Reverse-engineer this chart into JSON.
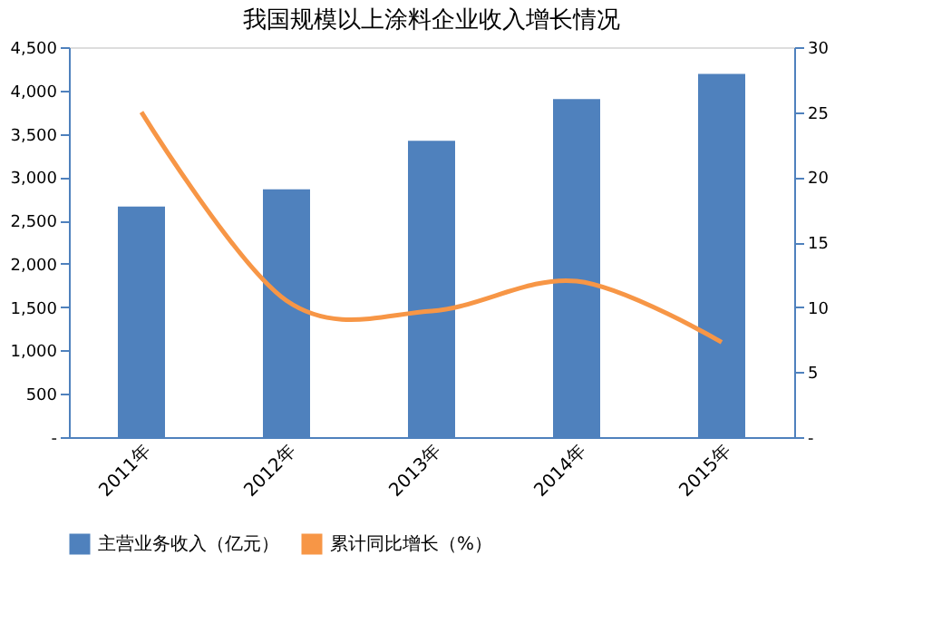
{
  "chart_data": {
    "type": "bar",
    "title": "我国规模以上涂料企业收入增长情况",
    "categories": [
      "2011年",
      "2012年",
      "2013年",
      "2014年",
      "2015年"
    ],
    "series": [
      {
        "name": "主营业务收入（亿元）",
        "color": "#4f81bd",
        "values": [
          2660,
          2860,
          3420,
          3900,
          4190
        ]
      },
      {
        "name": "累计同比增长（%）",
        "color": "#f79646",
        "type": "line",
        "axis": "y2",
        "values": [
          25,
          10.5,
          9.7,
          12,
          7.3
        ]
      }
    ],
    "ylim": [
      0,
      4500
    ],
    "yticks": [
      {
        "value": 0,
        "label": "-"
      },
      {
        "value": 500,
        "label": "500"
      },
      {
        "value": 1000,
        "label": "1,000"
      },
      {
        "value": 1500,
        "label": "1,500"
      },
      {
        "value": 2000,
        "label": "2,000"
      },
      {
        "value": 2500,
        "label": "2,500"
      },
      {
        "value": 3000,
        "label": "3,000"
      },
      {
        "value": 3500,
        "label": "3,500"
      },
      {
        "value": 4000,
        "label": "4,000"
      },
      {
        "value": 4500,
        "label": "4,500"
      }
    ],
    "y2lim": [
      0,
      30
    ],
    "y2ticks": [
      {
        "value": 0,
        "label": "-"
      },
      5,
      10,
      15,
      20,
      25,
      30
    ],
    "legend": "bottom",
    "grid": false,
    "marker": "none"
  }
}
